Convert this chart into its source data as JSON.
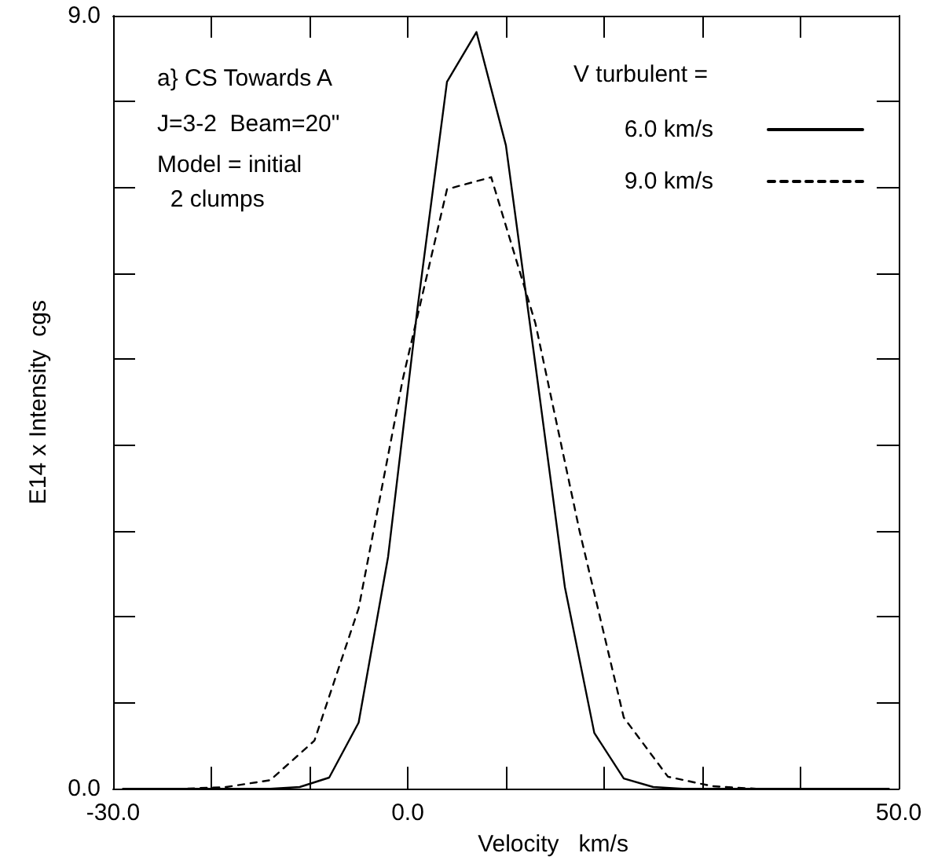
{
  "chart_data": {
    "type": "line",
    "xlabel": "Velocity   km/s",
    "ylabel": "E14 x Intensity  cgs",
    "legend_title": "V turbulent =",
    "annotations": [
      "a} CS Towards A",
      "J=3-2  Beam=20\"",
      "Model = initial\n  2 clumps"
    ],
    "xlim": [
      -30,
      50
    ],
    "xticks": [
      {
        "value": -30,
        "label": "-30.0"
      },
      {
        "value": -20,
        "label": null
      },
      {
        "value": -10,
        "label": null
      },
      {
        "value": 0,
        "label": "0.0"
      },
      {
        "value": 10,
        "label": null
      },
      {
        "value": 20,
        "label": null
      },
      {
        "value": 30,
        "label": null
      },
      {
        "value": 40,
        "label": null
      },
      {
        "value": 50,
        "label": "50.0"
      }
    ],
    "ylim": [
      0,
      9
    ],
    "yticks": [
      {
        "value": 0,
        "label": "0.0"
      },
      {
        "value": 1,
        "label": null
      },
      {
        "value": 2,
        "label": null
      },
      {
        "value": 3,
        "label": null
      },
      {
        "value": 4,
        "label": null
      },
      {
        "value": 5,
        "label": null
      },
      {
        "value": 6,
        "label": null
      },
      {
        "value": 7,
        "label": null
      },
      {
        "value": 8,
        "label": null
      },
      {
        "value": 9,
        "label": "9.0"
      }
    ],
    "grid": false,
    "legend": "top right",
    "marker": "none",
    "series": [
      {
        "name": "6.0 km/s",
        "color": "#000000",
        "line_style": "solid",
        "x": [
          -29,
          -26,
          -23,
          -20,
          -17,
          -14,
          -11,
          -8,
          -5,
          -2,
          1,
          4,
          7,
          10,
          13,
          16,
          19,
          22,
          25,
          28,
          31,
          34,
          37,
          40,
          43,
          46,
          49
        ],
        "values": [
          0,
          0,
          0,
          0,
          0,
          0,
          0.02,
          0.13,
          0.77,
          2.7,
          5.6,
          8.23,
          8.81,
          7.49,
          4.94,
          2.35,
          0.65,
          0.12,
          0.02,
          0,
          0,
          0,
          0,
          0,
          0,
          0,
          0
        ]
      },
      {
        "name": "9.0 km/s",
        "color": "#000000",
        "line_style": "dashed",
        "x": [
          -27.5,
          -23,
          -18.5,
          -14,
          -9.5,
          -5,
          -0.5,
          4,
          8.5,
          13,
          17.5,
          22,
          26.5,
          31,
          35.5,
          40,
          44.5,
          49
        ],
        "values": [
          0,
          0,
          0.02,
          0.1,
          0.56,
          2.1,
          4.77,
          6.98,
          7.12,
          5.42,
          3.0,
          0.83,
          0.14,
          0.03,
          0,
          0,
          0,
          0
        ]
      }
    ]
  }
}
